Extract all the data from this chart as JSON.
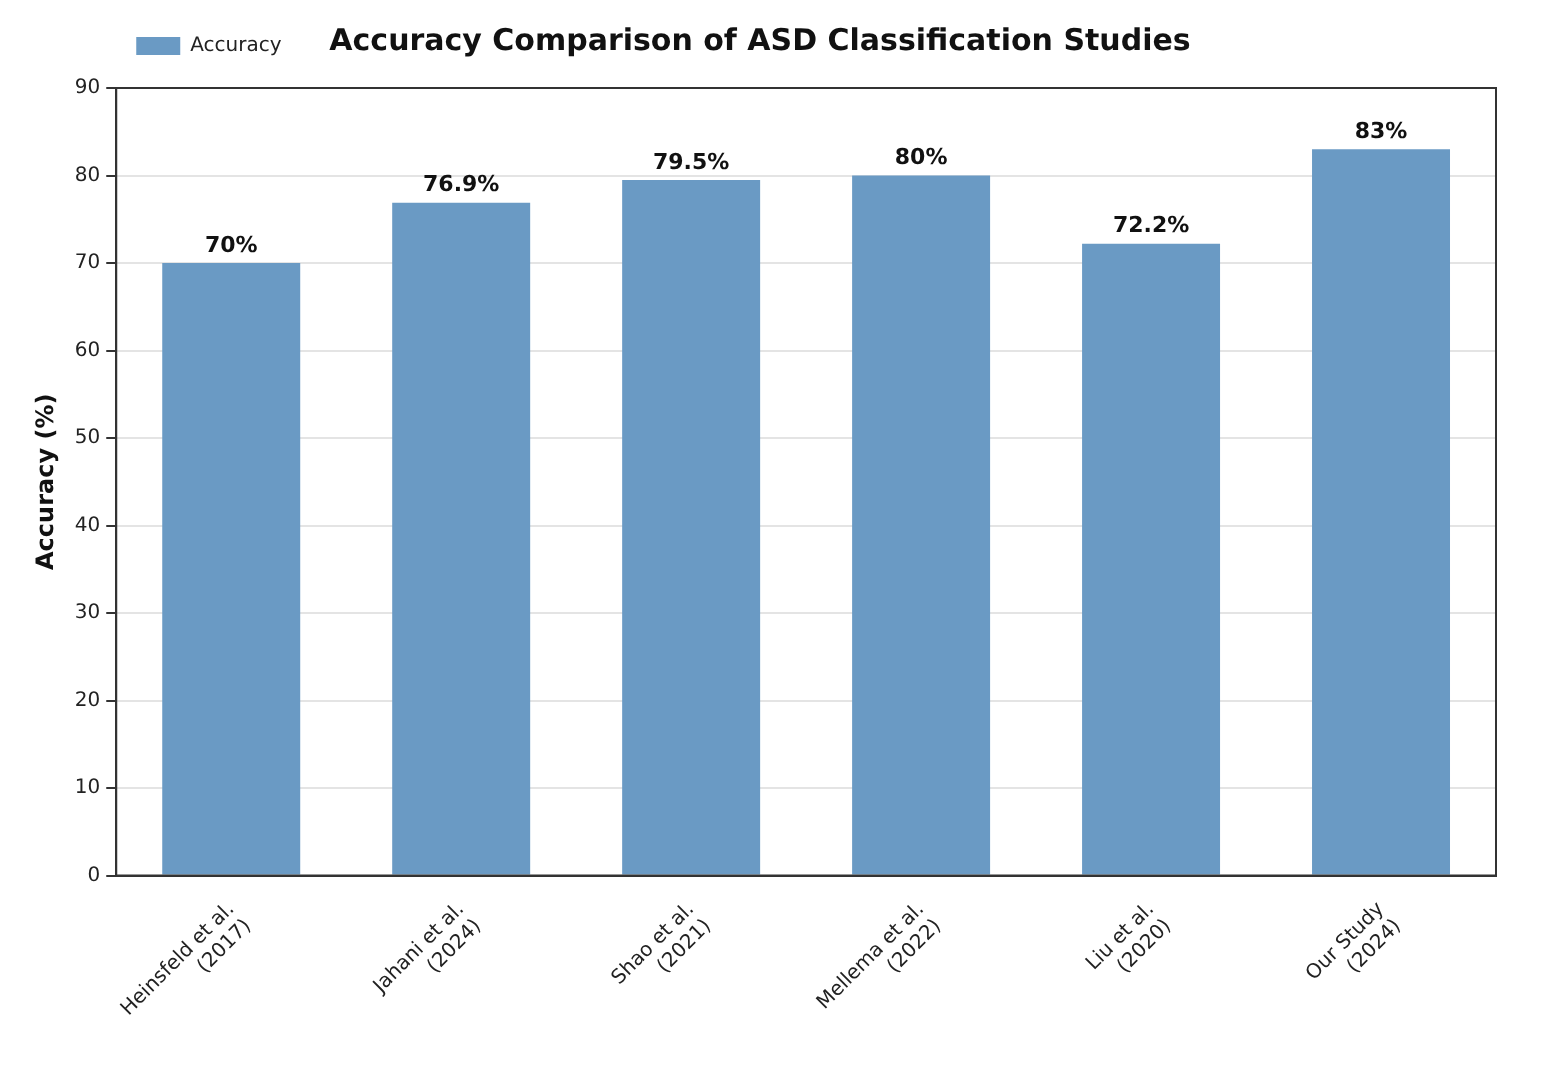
{
  "chart_data": {
    "type": "bar",
    "title": "Accuracy Comparison of ASD Classification Studies",
    "ylabel": "Accuracy (%)",
    "categories": [
      "Heinsfeld et al.\n(2017)",
      "Jahani et al.\n(2024)",
      "Shao et al.\n(2021)",
      "Mellema et al.\n(2022)",
      "Liu et al.\n(2020)",
      "Our Study\n(2024)"
    ],
    "series": [
      {
        "name": "Accuracy",
        "color": "#6a9ac4",
        "values": [
          70,
          76.9,
          79.5,
          80,
          72.2,
          83
        ],
        "value_labels": [
          "70%",
          "76.9%",
          "79.5%",
          "80%",
          "72.2%",
          "83%"
        ]
      }
    ],
    "ylim": [
      0,
      90
    ],
    "yticks": [
      0,
      10,
      20,
      30,
      40,
      50,
      60,
      70,
      80,
      90
    ],
    "grid": "y",
    "legend": "top left"
  }
}
